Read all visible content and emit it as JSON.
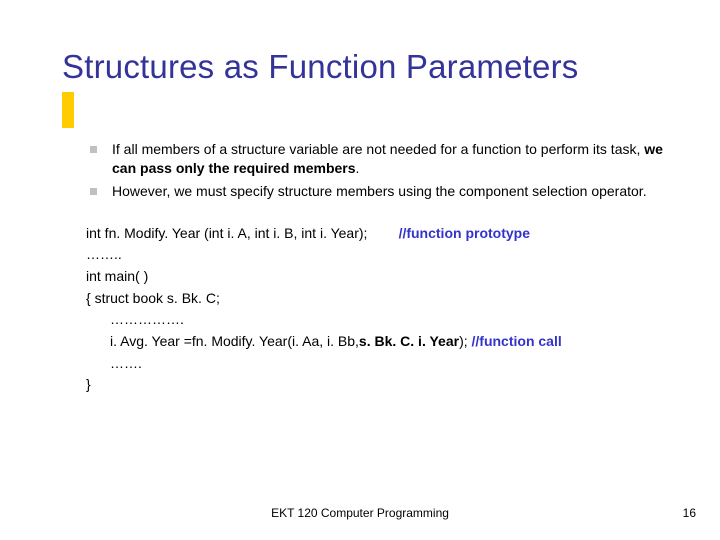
{
  "colors": {
    "title_color": "#333399",
    "accent_bar": "#ffcc00",
    "bullet_square": "#c0c0c0",
    "comment_color": "#3333cc",
    "text_color": "#000000",
    "background": "#ffffff"
  },
  "title": "Structures as Function Parameters",
  "bullets": [
    {
      "pre": "If all members of a structure variable are not needed for a function to perform its task, ",
      "bold": "we can pass only the required members",
      "post": "."
    },
    {
      "pre": "However, we must specify structure members using  the component selection operator.",
      "bold": "",
      "post": ""
    }
  ],
  "code": {
    "line1_a": "int fn. Modify. Year (int i. A, int i. B, int i. Year);",
    "line1_gap": "        ",
    "line1_comment": "//function prototype",
    "line2": "……..",
    "line3": "int main( )",
    "line4_a": "{   struct book s. Bk. C;",
    "line5": "…………….",
    "line6_a": "i. Avg. Year =fn. Modify. Year(i. Aa, i. Bb, ",
    "line6_bold": "s. Bk. C. i. Year",
    "line6_b": "); ",
    "line6_comment": "//function call",
    "line7": "…….",
    "line8": "}"
  },
  "footer": "EKT 120 Computer Programming",
  "page": "16"
}
